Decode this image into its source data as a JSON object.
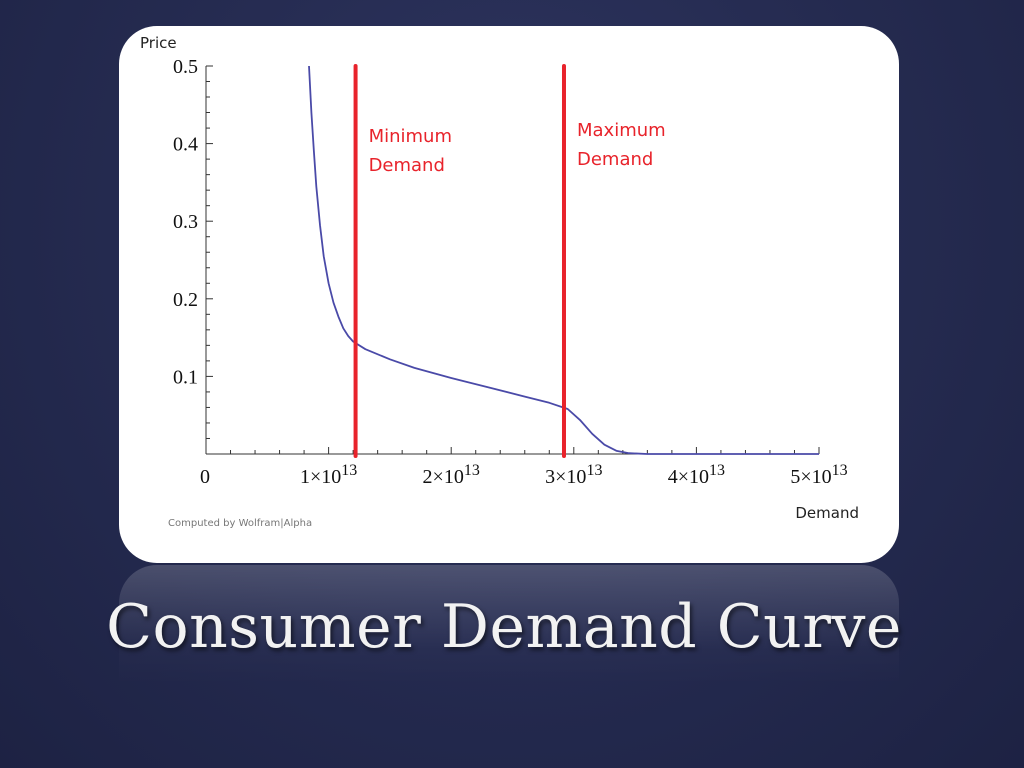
{
  "slide": {
    "title": "Consumer Demand Curve"
  },
  "chart_data": {
    "type": "line",
    "xlabel": "Demand",
    "ylabel": "Price",
    "xlim": [
      0,
      50000000000000.0
    ],
    "ylim": [
      0,
      0.5
    ],
    "x_ticks": [
      {
        "value": 0,
        "label": "0"
      },
      {
        "value": 10000000000000.0,
        "mant": "1",
        "exp": "13"
      },
      {
        "value": 20000000000000.0,
        "mant": "2",
        "exp": "13"
      },
      {
        "value": 30000000000000.0,
        "mant": "3",
        "exp": "13"
      },
      {
        "value": 40000000000000.0,
        "mant": "4",
        "exp": "13"
      },
      {
        "value": 50000000000000.0,
        "mant": "5",
        "exp": "13"
      }
    ],
    "y_ticks": [
      {
        "value": 0.1,
        "label": "0.1"
      },
      {
        "value": 0.2,
        "label": "0.2"
      },
      {
        "value": 0.3,
        "label": "0.3"
      },
      {
        "value": 0.4,
        "label": "0.4"
      },
      {
        "value": 0.5,
        "label": "0.5"
      }
    ],
    "series": [
      {
        "color": "#4a4aa8",
        "x": [
          8400000000000.0,
          8600000000000.0,
          8800000000000.0,
          9000000000000.0,
          9300000000000.0,
          9600000000000.0,
          10000000000000.0,
          10400000000000.0,
          10800000000000.0,
          11200000000000.0,
          11600000000000.0,
          12000000000000.0,
          13000000000000.0,
          15000000000000.0,
          17000000000000.0,
          20000000000000.0,
          23000000000000.0,
          26000000000000.0,
          28000000000000.0,
          29500000000000.0,
          30500000000000.0,
          31500000000000.0,
          32500000000000.0,
          33500000000000.0,
          34500000000000.0,
          36000000000000.0,
          40000000000000.0,
          45000000000000.0,
          50000000000000.0
        ],
        "y": [
          0.5,
          0.44,
          0.39,
          0.345,
          0.295,
          0.255,
          0.22,
          0.195,
          0.177,
          0.162,
          0.152,
          0.145,
          0.135,
          0.122,
          0.111,
          0.098,
          0.086,
          0.074,
          0.066,
          0.058,
          0.044,
          0.026,
          0.012,
          0.004,
          0.001,
          0.0,
          0.0,
          0.0,
          0.0
        ]
      }
    ],
    "markers": [
      {
        "x": 12200000000000.0,
        "label_lines": [
          "Minimum",
          "Demand"
        ],
        "color": "#e8232b"
      },
      {
        "x": 29200000000000.0,
        "label_lines": [
          "Maximum",
          "Demand"
        ],
        "color": "#e8232b"
      }
    ],
    "credit": "Computed by Wolfram|Alpha",
    "grid": false
  }
}
